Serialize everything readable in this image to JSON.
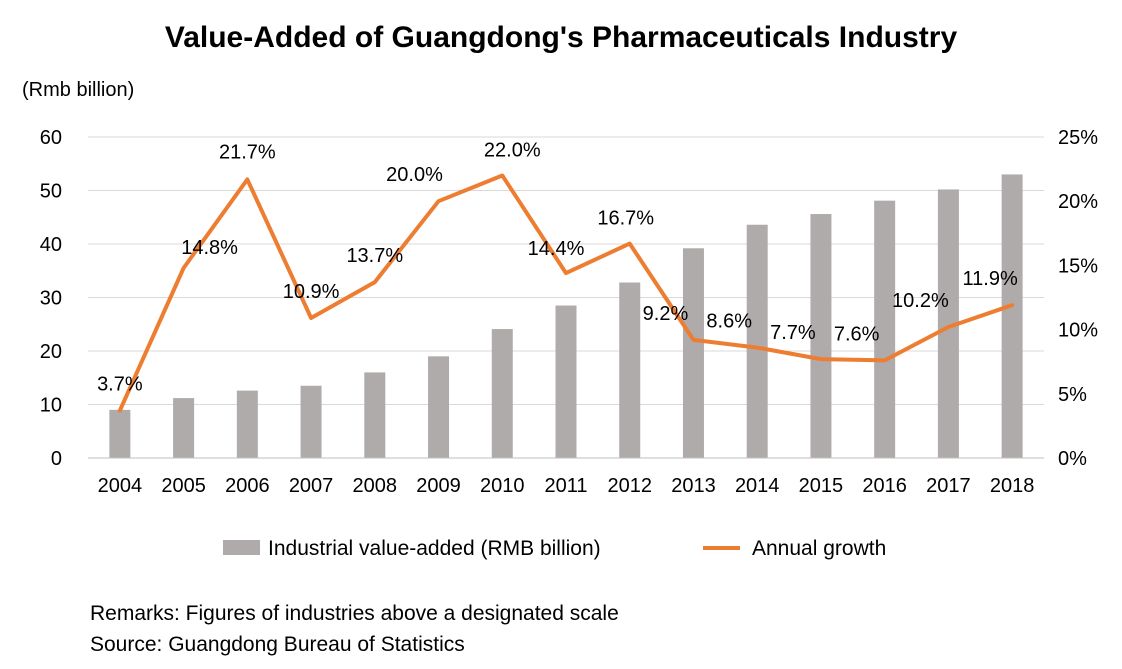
{
  "chart_data": {
    "type": "bar+line",
    "title": "Value-Added  of  Guangdong's  Pharmaceuticals  Industry",
    "left_axis_unit": "(Rmb billion)",
    "categories": [
      "2004",
      "2005",
      "2006",
      "2007",
      "2008",
      "2009",
      "2010",
      "2011",
      "2012",
      "2013",
      "2014",
      "2015",
      "2016",
      "2017",
      "2018"
    ],
    "series": [
      {
        "name": "Industrial value-added (RMB billion)",
        "type": "bar",
        "axis": "left",
        "color": "#afabab",
        "values": [
          9.0,
          11.2,
          12.6,
          13.5,
          16.0,
          19.0,
          24.1,
          28.5,
          32.8,
          39.2,
          43.6,
          45.6,
          48.1,
          50.2,
          53.0
        ]
      },
      {
        "name": "Annual growth",
        "type": "line",
        "axis": "right",
        "color": "#ed7d31",
        "values": [
          3.7,
          14.8,
          21.7,
          10.9,
          13.7,
          20.0,
          22.0,
          14.4,
          16.7,
          9.2,
          8.6,
          7.7,
          7.6,
          10.2,
          11.9
        ],
        "labels": [
          "3.7%",
          "14.8%",
          "21.7%",
          "10.9%",
          "13.7%",
          "20.0%",
          "22.0%",
          "14.4%",
          "16.7%",
          "9.2%",
          "8.6%",
          "7.7%",
          "7.6%",
          "10.2%",
          "11.9%"
        ]
      }
    ],
    "left_axis": {
      "min": 0,
      "max": 60,
      "ticks": [
        0,
        10,
        20,
        30,
        40,
        50,
        60
      ],
      "tick_labels": [
        "0",
        "10",
        "20",
        "30",
        "40",
        "50",
        "60"
      ]
    },
    "right_axis": {
      "min": 0,
      "max": 25,
      "ticks": [
        0,
        5,
        10,
        15,
        20,
        25
      ],
      "tick_labels": [
        "0%",
        "5%",
        "10%",
        "15%",
        "20%",
        "25%"
      ]
    },
    "grid": true,
    "legend_position": "bottom"
  },
  "notes": {
    "remarks": "Remarks: Figures of industries above a designated scale",
    "source": "Source: Guangdong Bureau of Statistics"
  }
}
